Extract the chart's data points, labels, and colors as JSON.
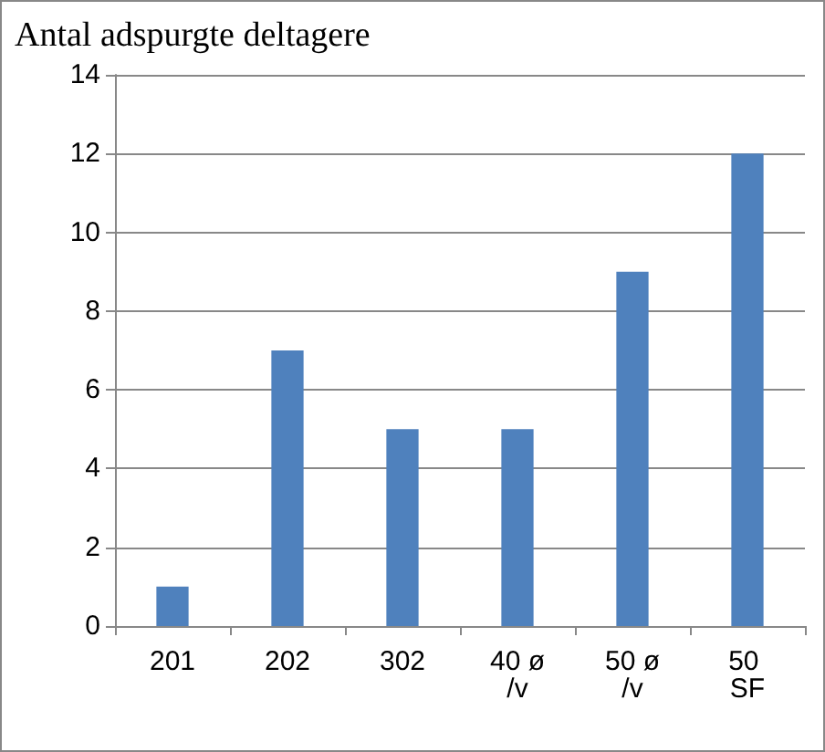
{
  "chart_data": {
    "type": "bar",
    "title": "Antal adspurgte deltagere",
    "categories": [
      "201",
      "202",
      "302",
      "40 ø/v",
      "50 ø/v",
      "50 SF"
    ],
    "values": [
      1,
      7,
      5,
      5,
      9,
      12
    ],
    "color": "#4f81bd",
    "ylim": [
      0,
      14
    ],
    "yticks": [
      0,
      2,
      4,
      6,
      8,
      10,
      12,
      14
    ],
    "grid": "y"
  }
}
